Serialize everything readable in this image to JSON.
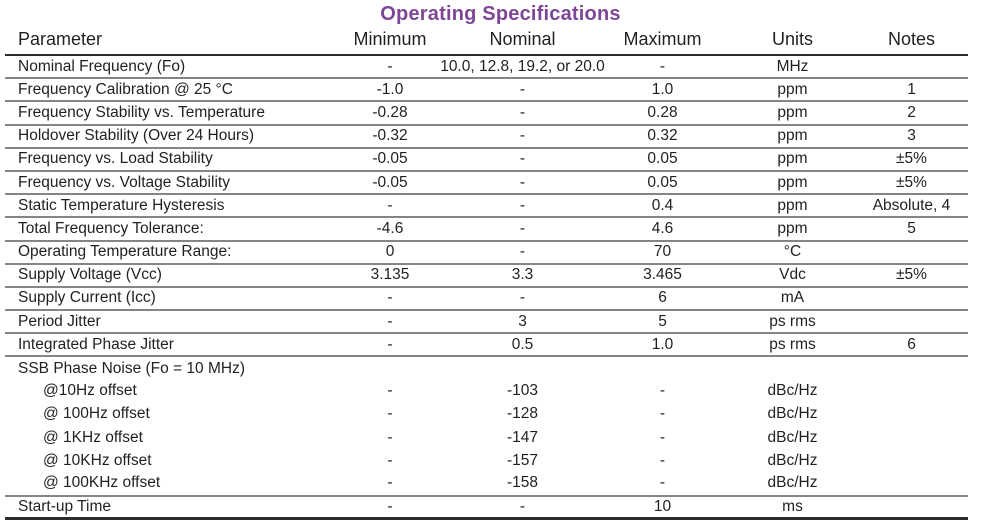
{
  "title": "Operating Specifications",
  "colors": {
    "title": "#7d4796",
    "text": "#231f20",
    "row_line": "#858585",
    "strong_line": "#2a2a2a"
  },
  "table": {
    "headers": [
      "Parameter",
      "Minimum",
      "Nominal",
      "Maximum",
      "Units",
      "Notes"
    ],
    "rows": [
      {
        "parameter": "Nominal Frequency (Fo)",
        "minimum": "-",
        "nominal": "10.0, 12.8, 19.2, or 20.0",
        "maximum": "-",
        "units": "MHz",
        "notes": "",
        "indent": false,
        "rule_below": true
      },
      {
        "parameter": "Frequency Calibration @ 25 °C",
        "minimum": "-1.0",
        "nominal": "-",
        "maximum": "1.0",
        "units": "ppm",
        "notes": "1",
        "indent": false,
        "rule_below": true
      },
      {
        "parameter": "Frequency Stability vs. Temperature",
        "minimum": "-0.28",
        "nominal": "-",
        "maximum": "0.28",
        "units": "ppm",
        "notes": "2",
        "indent": false,
        "rule_below": true
      },
      {
        "parameter": "Holdover Stability (Over 24 Hours)",
        "minimum": "-0.32",
        "nominal": "-",
        "maximum": "0.32",
        "units": "ppm",
        "notes": "3",
        "indent": false,
        "rule_below": true
      },
      {
        "parameter": "Frequency vs. Load Stability",
        "minimum": "-0.05",
        "nominal": "-",
        "maximum": "0.05",
        "units": "ppm",
        "notes": "±5%",
        "indent": false,
        "rule_below": true
      },
      {
        "parameter": "Frequency vs. Voltage Stability",
        "minimum": "-0.05",
        "nominal": "-",
        "maximum": "0.05",
        "units": "ppm",
        "notes": "±5%",
        "indent": false,
        "rule_below": true
      },
      {
        "parameter": "Static Temperature Hysteresis",
        "minimum": "-",
        "nominal": "-",
        "maximum": "0.4",
        "units": "ppm",
        "notes": "Absolute, 4",
        "indent": false,
        "rule_below": true
      },
      {
        "parameter": "Total Frequency Tolerance:",
        "minimum": "-4.6",
        "nominal": "-",
        "maximum": "4.6",
        "units": "ppm",
        "notes": "5",
        "indent": false,
        "rule_below": true
      },
      {
        "parameter": "Operating Temperature Range:",
        "minimum": "0",
        "nominal": "-",
        "maximum": "70",
        "units": "°C",
        "notes": "",
        "indent": false,
        "rule_below": true
      },
      {
        "parameter": "Supply Voltage (Vcc)",
        "minimum": "3.135",
        "nominal": "3.3",
        "maximum": "3.465",
        "units": "Vdc",
        "notes": "±5%",
        "indent": false,
        "rule_below": true
      },
      {
        "parameter": "Supply Current (Icc)",
        "minimum": "-",
        "nominal": "-",
        "maximum": "6",
        "units": "mA",
        "notes": "",
        "indent": false,
        "rule_below": true
      },
      {
        "parameter": "Period Jitter",
        "minimum": "-",
        "nominal": "3",
        "maximum": "5",
        "units": "ps rms",
        "notes": "",
        "indent": false,
        "rule_below": true
      },
      {
        "parameter": "Integrated Phase Jitter",
        "minimum": "-",
        "nominal": "0.5",
        "maximum": "1.0",
        "units": "ps rms",
        "notes": "6",
        "indent": false,
        "rule_below": true
      },
      {
        "parameter": "SSB Phase Noise (Fo = 10 MHz)",
        "minimum": "",
        "nominal": "",
        "maximum": "",
        "units": "",
        "notes": "",
        "indent": false,
        "rule_below": false
      },
      {
        "parameter": "@10Hz offset",
        "minimum": "-",
        "nominal": "-103",
        "maximum": "-",
        "units": "dBc/Hz",
        "notes": "",
        "indent": true,
        "rule_below": false
      },
      {
        "parameter": "@ 100Hz offset",
        "minimum": "-",
        "nominal": "-128",
        "maximum": "-",
        "units": "dBc/Hz",
        "notes": "",
        "indent": true,
        "rule_below": false
      },
      {
        "parameter": "@ 1KHz offset",
        "minimum": "-",
        "nominal": "-147",
        "maximum": "-",
        "units": "dBc/Hz",
        "notes": "",
        "indent": true,
        "rule_below": false
      },
      {
        "parameter": "@ 10KHz offset",
        "minimum": "-",
        "nominal": "-157",
        "maximum": "-",
        "units": "dBc/Hz",
        "notes": "",
        "indent": true,
        "rule_below": false
      },
      {
        "parameter": "@ 100KHz offset",
        "minimum": "-",
        "nominal": "-158",
        "maximum": "-",
        "units": "dBc/Hz",
        "notes": "",
        "indent": true,
        "rule_below": true
      },
      {
        "parameter": "Start-up Time",
        "minimum": "-",
        "nominal": "-",
        "maximum": "10",
        "units": "ms",
        "notes": "",
        "indent": false,
        "rule_below": false
      }
    ]
  }
}
